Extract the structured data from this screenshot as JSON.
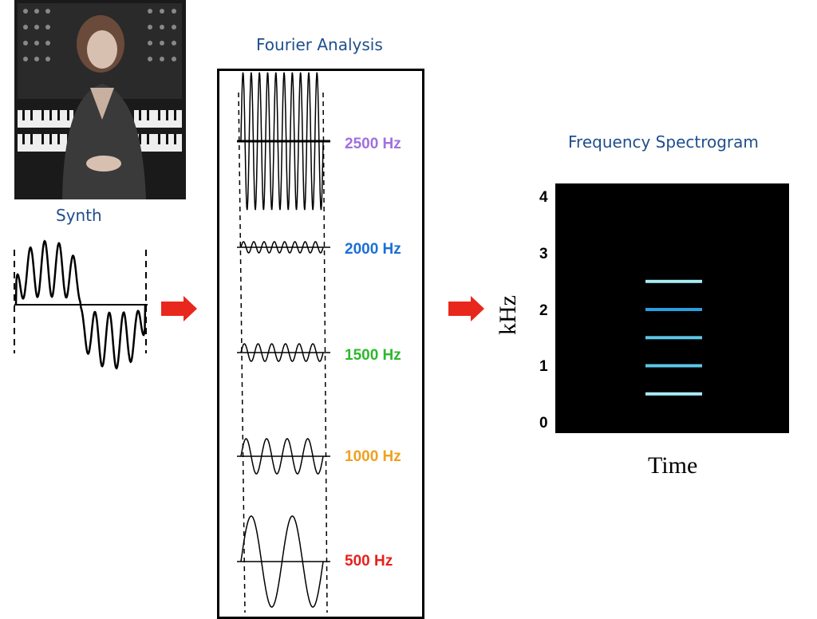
{
  "titles": {
    "synth": "Synth",
    "fourier": "Fourier Analysis",
    "spectrogram": "Frequency Spectrogram"
  },
  "colors": {
    "title": "#1f4e8c",
    "arrow": "#e8281c",
    "f2500": "#a070e0",
    "f2000": "#1a6fd6",
    "f1500": "#2db82d",
    "f1000": "#f0a020",
    "f500": "#e8201c",
    "band_light": "#a8ecf4",
    "band_mid": "#2a9ee0",
    "band_cyan": "#5cc8e8"
  },
  "photo": {
    "description_icon": "person-at-synthesizer-photo"
  },
  "fourier_components": [
    {
      "label": "2500 Hz",
      "frequency": 2500
    },
    {
      "label": "2000 Hz",
      "frequency": 2000
    },
    {
      "label": "1500 Hz",
      "frequency": 1500
    },
    {
      "label": "1000 Hz",
      "frequency": 1000
    },
    {
      "label": "500 Hz",
      "frequency": 500
    }
  ],
  "spectrogram": {
    "y_label": "kHz",
    "x_label": "Time",
    "y_ticks": [
      "4",
      "3",
      "2",
      "1",
      "0"
    ],
    "bands_khz": [
      2.5,
      2.0,
      1.5,
      1.0,
      0.5
    ]
  }
}
